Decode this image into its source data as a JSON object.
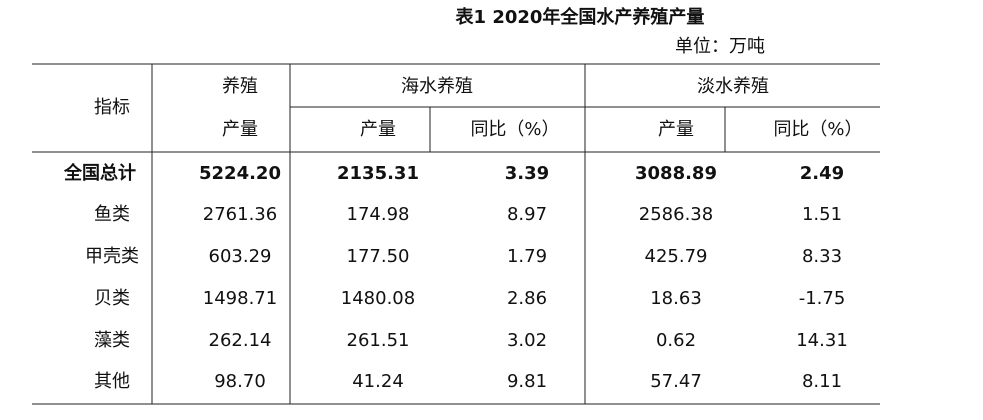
{
  "header": {
    "title": "表1  2020年全国水产养殖产量",
    "unit": "单位：万吨"
  },
  "table": {
    "head": {
      "indicator": "指标",
      "aquaculture": [
        "养殖",
        "产量"
      ],
      "marine": "海水养殖",
      "freshwater": "淡水养殖",
      "sub": [
        "产量",
        "同比（%）",
        "产量",
        "同比（%）"
      ]
    },
    "rows": [
      [
        "全国总计",
        "5224.20",
        "2135.31",
        "3.39",
        "3088.89",
        "2.49"
      ],
      [
        "鱼类",
        "2761.36",
        "174.98",
        "8.97",
        "2586.38",
        "1.51"
      ],
      [
        "甲壳类",
        "603.29",
        "177.50",
        "1.79",
        "425.79",
        "8.33"
      ],
      [
        "贝类",
        "1498.71",
        "1480.08",
        "2.86",
        "18.63",
        "-1.75"
      ],
      [
        "藻类",
        "262.14",
        "261.51",
        "3.02",
        "0.62",
        "14.31"
      ],
      [
        "其他",
        "98.70",
        "41.24",
        "9.81",
        "57.47",
        "8.11"
      ]
    ]
  }
}
